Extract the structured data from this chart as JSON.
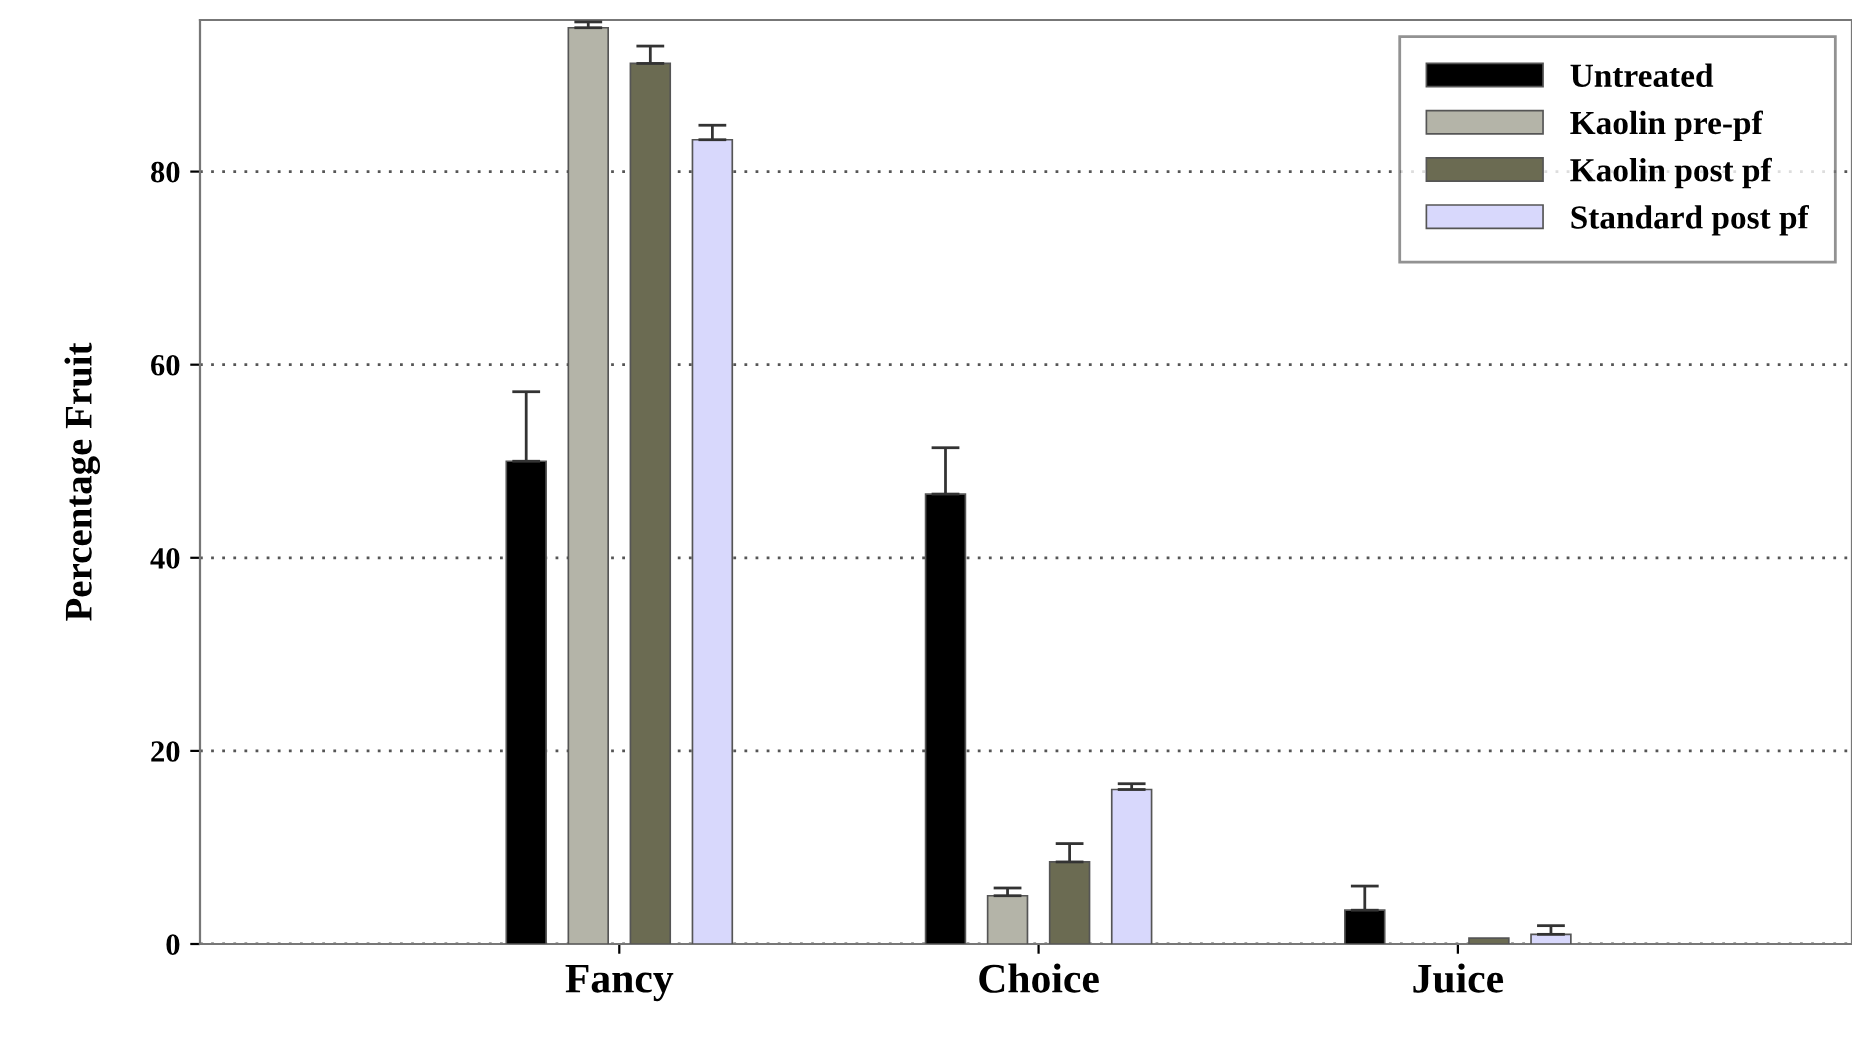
{
  "chart_data": {
    "type": "bar",
    "ylabel": "Percentage Fruit",
    "categories": [
      "Fancy",
      "Choice",
      "Juice"
    ],
    "ylim": [
      0,
      95.7
    ],
    "yticks": [
      0,
      20,
      40,
      60,
      80
    ],
    "grid": "y",
    "legend": "top right",
    "series": [
      {
        "name": "Untreated",
        "color": "#000000",
        "values": [
          50.0,
          46.6,
          3.5
        ],
        "errors": [
          [
            50.0,
            57.2
          ],
          [
            46.6,
            51.4
          ],
          [
            3.5,
            6.0
          ]
        ]
      },
      {
        "name": "Kaolin pre-pf",
        "color": "#b4b4a8",
        "values": [
          94.9,
          5.0,
          null
        ],
        "errors": [
          [
            94.9,
            95.5
          ],
          [
            5.0,
            5.8
          ],
          null
        ]
      },
      {
        "name": "Kaolin post pf",
        "color": "#6b6b52",
        "values": [
          91.2,
          8.5,
          0.6
        ],
        "errors": [
          [
            91.2,
            93.0
          ],
          [
            8.5,
            10.4
          ],
          null
        ]
      },
      {
        "name": "Standard post pf",
        "color": "#d8d8fc",
        "values": [
          83.3,
          16.0,
          1.0
        ],
        "errors": [
          [
            83.3,
            84.8
          ],
          [
            16.0,
            16.6
          ],
          [
            1.0,
            1.9
          ]
        ]
      }
    ]
  }
}
